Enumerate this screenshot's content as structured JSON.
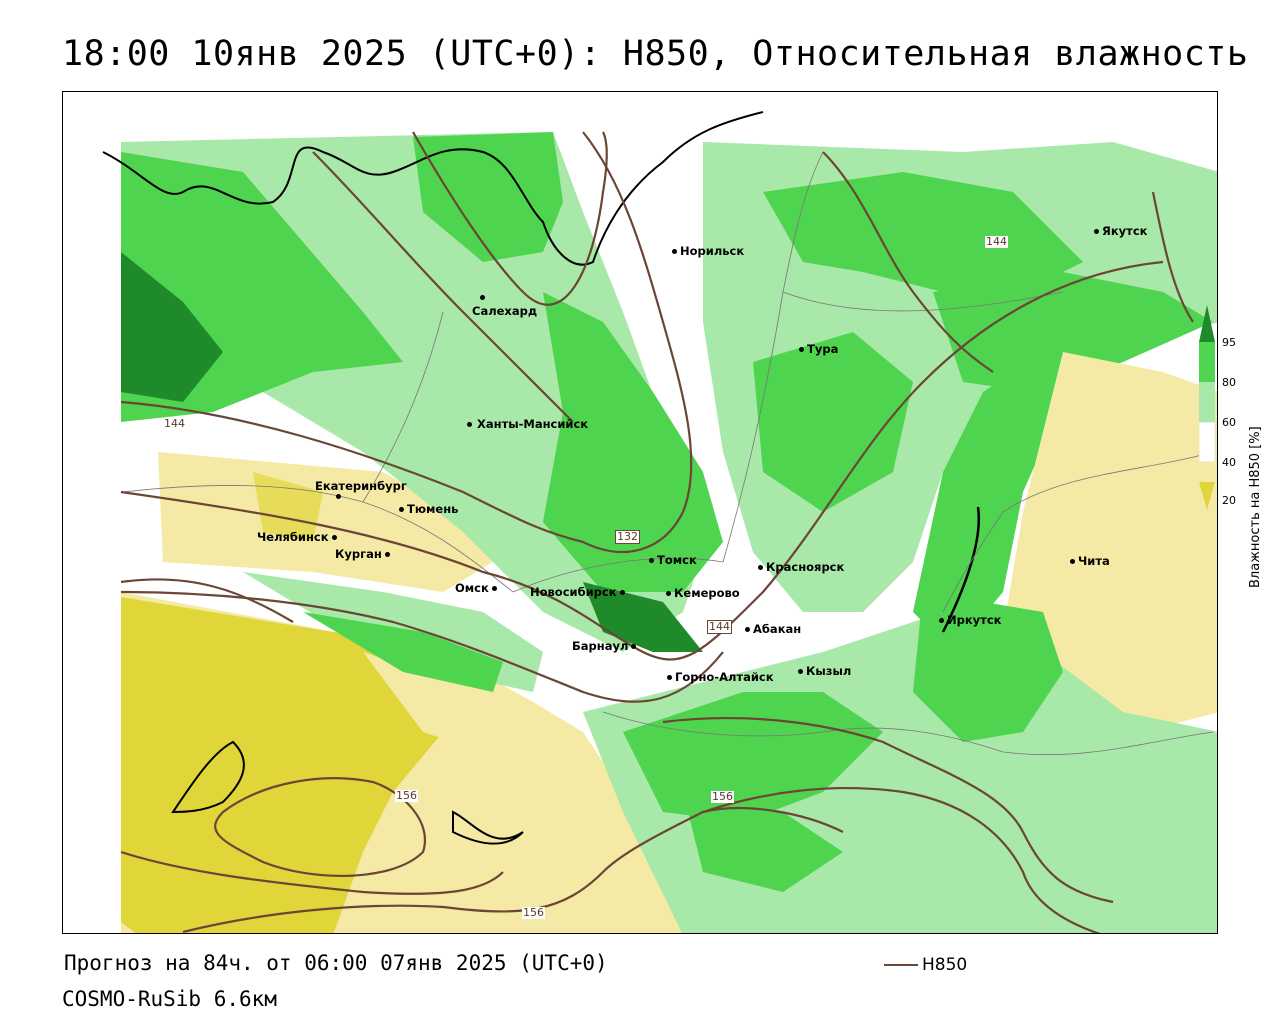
{
  "title": "18:00 10янв 2025 (UTC+0): H850, Относительная влажность",
  "footer": {
    "forecast": "Прогноз на 84ч. от 06:00 07янв 2025 (UTC+0)",
    "model": "COSMO-RuSib 6.6км"
  },
  "key": {
    "label": "H850",
    "color": "#6b4535"
  },
  "legend": {
    "title": "Влажность на H850 [%]",
    "ticks": [
      "95",
      "80",
      "60",
      "40",
      "20"
    ],
    "colors": {
      "above95": "#1f8a2a",
      "c80_95": "#4fd44f",
      "c60_80": "#a8e8a8",
      "c40_60": "#ffffff",
      "c20_40": "#f5eaa5",
      "below20": "#e0d63a"
    }
  },
  "cities": [
    {
      "name": "Якутск"
    },
    {
      "name": "Норильск"
    },
    {
      "name": "Салехард"
    },
    {
      "name": "Тура"
    },
    {
      "name": "Ханты-Мансийск"
    },
    {
      "name": "Екатеринбург"
    },
    {
      "name": "Тюмень"
    },
    {
      "name": "Челябинск"
    },
    {
      "name": "Курган"
    },
    {
      "name": "Омск"
    },
    {
      "name": "Новосибирск"
    },
    {
      "name": "Томск"
    },
    {
      "name": "Кемерово"
    },
    {
      "name": "Красноярск"
    },
    {
      "name": "Барнаул"
    },
    {
      "name": "Абакан"
    },
    {
      "name": "Горно-Алтайск"
    },
    {
      "name": "Кызыл"
    },
    {
      "name": "Иркутск"
    },
    {
      "name": "Чита"
    }
  ],
  "contour_labels": [
    "144",
    "144",
    "132",
    "144",
    "156",
    "156",
    "156"
  ]
}
